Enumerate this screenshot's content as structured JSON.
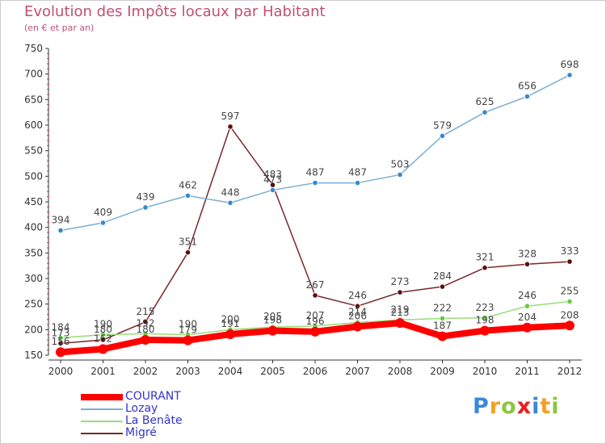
{
  "header": {
    "title": "Evolution des Impôts locaux par Habitant",
    "subtitle": "(en € et par an)"
  },
  "logo": {
    "text": "Proxiti",
    "letters": [
      "P",
      "r",
      "o",
      "x",
      "i",
      "t",
      "i"
    ],
    "colors": [
      "#3a88d8",
      "#f4a024",
      "#8cc63e",
      "#ed1c24",
      "#3a88d8",
      "#f4a024",
      "#8cc63e"
    ]
  },
  "legend": [
    {
      "name": "COURANT",
      "color": "#ff0000"
    },
    {
      "name": "Lozay",
      "color": "#7aaed6"
    },
    {
      "name": "La Benâte",
      "color": "#99dd77"
    },
    {
      "name": "Migré",
      "color": "#7a2828"
    }
  ],
  "chart_data": {
    "type": "line",
    "title": "Evolution des Impôts locaux par Habitant",
    "subtitle": "(en € et par an)",
    "xlabel": "",
    "ylabel": "",
    "categories": [
      "2000",
      "2001",
      "2002",
      "2003",
      "2004",
      "2005",
      "2006",
      "2007",
      "2008",
      "2009",
      "2010",
      "2011",
      "2012"
    ],
    "ylim": [
      150,
      750
    ],
    "yticks": [
      150,
      200,
      250,
      300,
      350,
      400,
      450,
      500,
      550,
      600,
      650,
      700,
      750
    ],
    "grid": false,
    "legend_position": "bottom-left",
    "series": [
      {
        "name": "COURANT",
        "color": "#ff0000",
        "values": [
          156,
          162,
          180,
          179,
          191,
          198,
          196,
          206,
          213,
          187,
          198,
          204,
          208
        ],
        "labels": [
          "156",
          "162",
          "180",
          "179",
          "191",
          "198",
          "196",
          "206",
          "213",
          "187",
          "198",
          "204",
          "208"
        ]
      },
      {
        "name": "Lozay",
        "color": "#7aaed6",
        "marker": "#3a88c8",
        "values": [
          394,
          409,
          439,
          462,
          448,
          473,
          487,
          487,
          503,
          579,
          625,
          656,
          698
        ],
        "labels": [
          "394",
          "409",
          "439",
          "462",
          "448",
          "473",
          "487",
          "487",
          "503",
          "579",
          "625",
          "656",
          "698"
        ]
      },
      {
        "name": "La Benâte",
        "color": "#99dd77",
        "marker": "#66cc44",
        "values": [
          184,
          190,
          192,
          190,
          200,
          205,
          207,
          214,
          219,
          222,
          223,
          246,
          255
        ],
        "labels": [
          "184",
          "190",
          "192",
          "190",
          "200",
          "205",
          "207",
          "214",
          "219",
          "222",
          "223",
          "246",
          "255"
        ]
      },
      {
        "name": "Migré",
        "color": "#7a2828",
        "marker": "#5a1010",
        "values": [
          173,
          180,
          215,
          351,
          597,
          483,
          267,
          246,
          273,
          284,
          321,
          328,
          333
        ],
        "labels": [
          "173",
          "180",
          "215",
          "351",
          "597",
          "483",
          "267",
          "246",
          "273",
          "284",
          "321",
          "328",
          "333"
        ]
      }
    ]
  }
}
